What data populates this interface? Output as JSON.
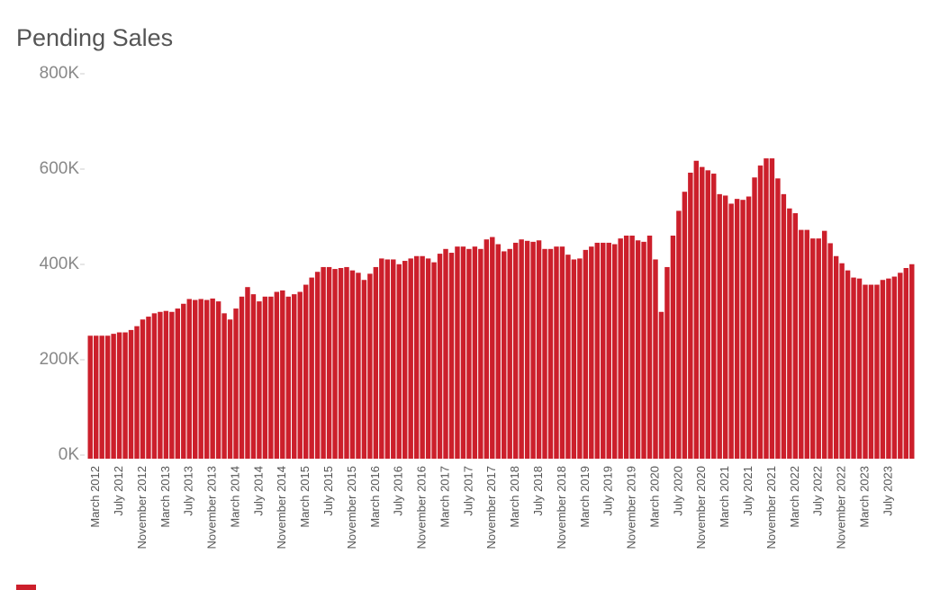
{
  "chart_data": {
    "type": "bar",
    "title": "Pending Sales",
    "color": "#cc1f2b",
    "categories": [
      null,
      "March 2012",
      null,
      null,
      null,
      "July 2012",
      null,
      null,
      null,
      "November 2012",
      null,
      null,
      null,
      "March 2013",
      null,
      null,
      null,
      "July 2013",
      null,
      null,
      null,
      "November 2013",
      null,
      null,
      null,
      "March 2014",
      null,
      null,
      null,
      "July 2014",
      null,
      null,
      null,
      "November 2014",
      null,
      null,
      null,
      "March 2015",
      null,
      null,
      null,
      "July 2015",
      null,
      null,
      null,
      "November 2015",
      null,
      null,
      null,
      "March 2016",
      null,
      null,
      null,
      "July 2016",
      null,
      null,
      null,
      "November 2016",
      null,
      null,
      null,
      "March 2017",
      null,
      null,
      null,
      "July 2017",
      null,
      null,
      null,
      "November 2017",
      null,
      null,
      null,
      "March 2018",
      null,
      null,
      null,
      "July 2018",
      null,
      null,
      null,
      "November 2018",
      null,
      null,
      null,
      "March 2019",
      null,
      null,
      null,
      "July 2019",
      null,
      null,
      null,
      "November 2019",
      null,
      null,
      null,
      "March 2020",
      null,
      null,
      null,
      "July 2020",
      null,
      null,
      null,
      "November 2020",
      null,
      null,
      null,
      "March 2021",
      null,
      null,
      null,
      "July 2021",
      null,
      null,
      null,
      "November 2021",
      null,
      null,
      null,
      "March 2022",
      null,
      null,
      null,
      "July 2022",
      null,
      null,
      null,
      "November 2022",
      null,
      null,
      null,
      "March 2023",
      null,
      null,
      null,
      "July 2023",
      null,
      null,
      null,
      null
    ],
    "values": [
      258000,
      258000,
      258000,
      258000,
      262000,
      265000,
      265000,
      270000,
      278000,
      292000,
      298000,
      305000,
      308000,
      310000,
      308000,
      315000,
      325000,
      335000,
      333000,
      335000,
      333000,
      336000,
      330000,
      305000,
      292000,
      315000,
      340000,
      360000,
      345000,
      330000,
      340000,
      340000,
      350000,
      353000,
      340000,
      345000,
      350000,
      365000,
      380000,
      392000,
      402000,
      402000,
      398000,
      400000,
      402000,
      395000,
      390000,
      375000,
      388000,
      402000,
      420000,
      418000,
      418000,
      408000,
      415000,
      420000,
      425000,
      425000,
      420000,
      412000,
      430000,
      440000,
      432000,
      445000,
      445000,
      440000,
      445000,
      440000,
      460000,
      465000,
      450000,
      435000,
      440000,
      453000,
      460000,
      457000,
      455000,
      458000,
      440000,
      440000,
      445000,
      445000,
      428000,
      418000,
      420000,
      438000,
      445000,
      453000,
      453000,
      453000,
      450000,
      462000,
      468000,
      468000,
      458000,
      455000,
      468000,
      418000,
      308000,
      402000,
      468000,
      520000,
      560000,
      600000,
      625000,
      612000,
      605000,
      598000,
      555000,
      552000,
      535000,
      545000,
      543000,
      550000,
      590000,
      615000,
      630000,
      630000,
      588000,
      555000,
      525000,
      515000,
      480000,
      480000,
      462000,
      462000,
      478000,
      452000,
      425000,
      410000,
      395000,
      380000,
      378000,
      365000,
      365000,
      365000,
      375000,
      378000,
      382000,
      390000,
      400000,
      408000
    ],
    "ylim": [
      0,
      800000
    ],
    "yticks": [
      {
        "value": 0,
        "label": "0K"
      },
      {
        "value": 200000,
        "label": "200K"
      },
      {
        "value": 400000,
        "label": "400K"
      },
      {
        "value": 600000,
        "label": "600K"
      },
      {
        "value": 800000,
        "label": "800K"
      }
    ]
  }
}
